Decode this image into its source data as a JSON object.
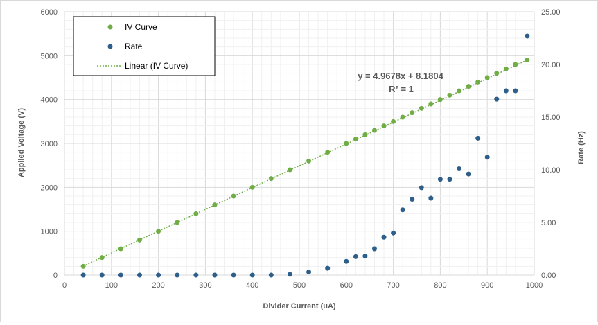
{
  "chart_data": {
    "type": "scatter",
    "xlabel": "Divider Current (uA)",
    "ylabel": "Applied Voltage (V)",
    "y2label": "Rate (Hz)",
    "xlim": [
      0,
      1000
    ],
    "ylim": [
      0,
      6000
    ],
    "y2lim": [
      0,
      25
    ],
    "x_ticks": [
      "0",
      "100",
      "200",
      "300",
      "400",
      "500",
      "600",
      "700",
      "800",
      "900",
      "1000"
    ],
    "y_ticks": [
      "0",
      "1000",
      "2000",
      "3000",
      "4000",
      "5000",
      "6000"
    ],
    "y2_ticks": [
      "0.00",
      "5.00",
      "10.00",
      "15.00",
      "20.00",
      "25.00"
    ],
    "grid": "major-and-minor",
    "legend_position": "top-left",
    "legend": [
      "IV Curve",
      "Rate",
      "Linear (IV Curve)"
    ],
    "trendline": {
      "series": "IV Curve",
      "slope": 4.9678,
      "intercept": 8.1804,
      "equation_label": "y = 4.9678x + 8.1804",
      "r2_label": "R² = 1",
      "x_range": [
        40,
        985
      ]
    },
    "series": [
      {
        "name": "IV Curve",
        "axis": "left",
        "color": "#70ad47",
        "x": [
          40,
          80,
          120,
          160,
          200,
          240,
          280,
          320,
          360,
          400,
          440,
          480,
          520,
          560,
          600,
          620,
          640,
          660,
          680,
          700,
          720,
          740,
          760,
          780,
          800,
          820,
          840,
          860,
          880,
          900,
          920,
          940,
          960,
          985
        ],
        "y": [
          200,
          400,
          600,
          800,
          1000,
          1200,
          1400,
          1600,
          1800,
          2000,
          2200,
          2400,
          2600,
          2800,
          3000,
          3100,
          3200,
          3300,
          3400,
          3500,
          3600,
          3700,
          3800,
          3900,
          4000,
          4100,
          4200,
          4300,
          4400,
          4500,
          4600,
          4700,
          4800,
          4900
        ]
      },
      {
        "name": "Rate",
        "axis": "right",
        "color": "#2e5f8a",
        "x": [
          40,
          80,
          120,
          160,
          200,
          240,
          280,
          320,
          360,
          400,
          440,
          480,
          520,
          560,
          600,
          620,
          640,
          660,
          680,
          700,
          720,
          740,
          760,
          780,
          800,
          820,
          840,
          860,
          880,
          900,
          920,
          940,
          960,
          985
        ],
        "y": [
          0,
          0,
          0,
          0,
          0,
          0,
          0,
          0,
          0,
          0,
          0,
          0.07,
          0.3,
          0.65,
          1.3,
          1.75,
          1.8,
          2.5,
          3.6,
          4.0,
          6.2,
          7.2,
          8.3,
          7.3,
          9.1,
          9.1,
          10.1,
          9.6,
          13.0,
          11.2,
          16.7,
          17.5,
          17.5,
          22.7
        ]
      }
    ]
  }
}
